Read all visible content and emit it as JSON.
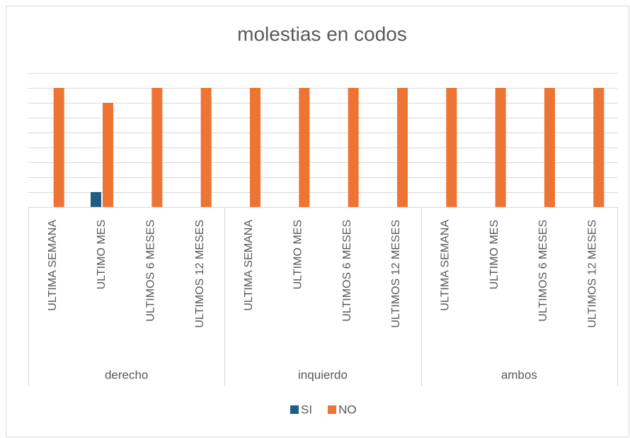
{
  "chart_data": {
    "type": "bar",
    "title": "molestias en codos",
    "groups": [
      {
        "label": "derecho",
        "categories": [
          "ULTIMA SEMANA",
          "ULTIMO MES",
          "ULTIMOS 6 MESES",
          "ULTIMOS 12 MESES"
        ]
      },
      {
        "label": "inquierdo",
        "categories": [
          "ULTIMA SEMANA",
          "ULTIMO MES",
          "ULTIMOS 6 MESES",
          "ULTIMOS 12 MESES"
        ]
      },
      {
        "label": "ambos",
        "categories": [
          "ULTIMA SEMANA",
          "ULTIMO MES",
          "ULTIMOS 6 MESES",
          "ULTIMOS 12 MESES"
        ]
      }
    ],
    "series": [
      {
        "name": "SI",
        "color": "#1f5e84",
        "values": [
          0,
          1,
          0,
          0,
          0,
          0,
          0,
          0,
          0,
          0,
          0,
          0
        ]
      },
      {
        "name": "NO",
        "color": "#ed7432",
        "values": [
          8,
          7,
          8,
          8,
          8,
          8,
          8,
          8,
          8,
          8,
          8,
          8
        ]
      }
    ],
    "ylim": [
      0,
      9
    ],
    "yticks": [
      0,
      1,
      2,
      3,
      4,
      5,
      6,
      7,
      8,
      9
    ],
    "grid": true,
    "legend": "bottom"
  }
}
